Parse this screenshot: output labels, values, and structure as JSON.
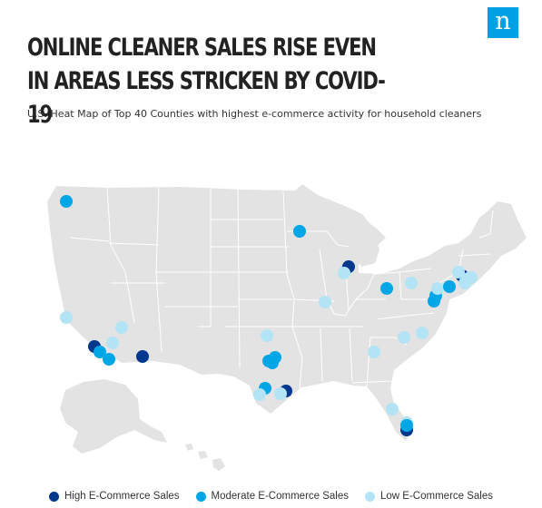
{
  "header": {
    "title": "ONLINE CLEANER SALES RISE EVEN IN AREAS LESS STRICKEN BY COVID-19",
    "subtitle": "U.S. Heat Map of Top 40 Counties with highest e-commerce activity for household cleaners",
    "logo_letter": "n",
    "logo_color": "#00a0e4"
  },
  "map": {
    "land_color": "#e3e3e3",
    "border_color": "#ffffff",
    "categories": {
      "high": "#00388d",
      "moderate": "#00a6e6",
      "low": "#b3e4f6"
    }
  },
  "legend": {
    "items": [
      {
        "label": "High E-Commerce Sales",
        "color": "#00388d"
      },
      {
        "label": "Moderate E-Commerce Sales",
        "color": "#00a6e6"
      },
      {
        "label": "Low E-Commerce Sales",
        "color": "#b3e4f6"
      }
    ]
  }
}
